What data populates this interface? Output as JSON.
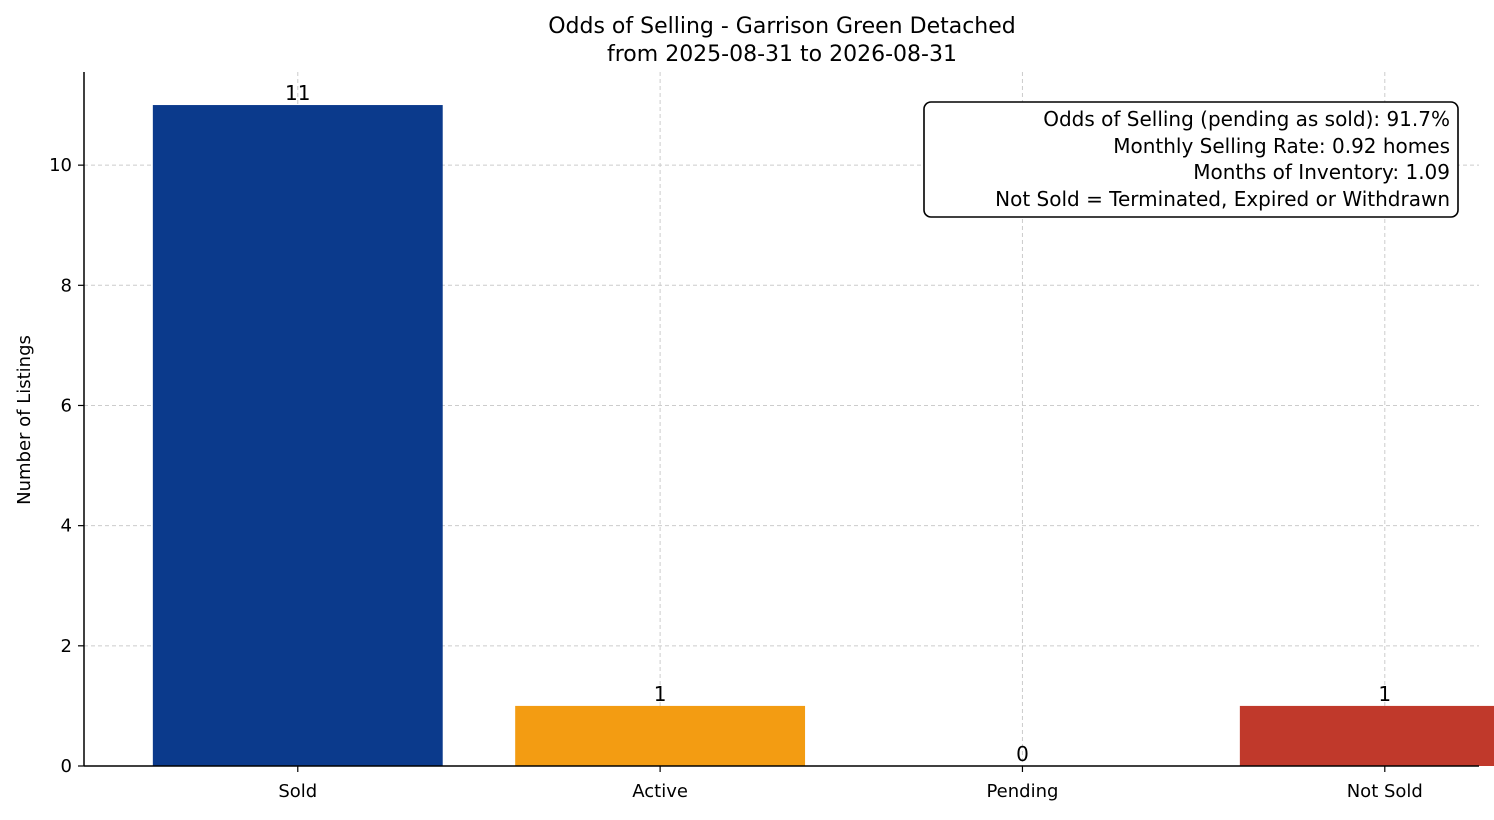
{
  "chart_data": {
    "type": "bar",
    "title": "Odds of Selling - Garrison Green Detached",
    "subtitle": "from 2025-08-31 to 2026-08-31",
    "xlabel": "",
    "ylabel": "Number of Listings",
    "categories": [
      "Sold",
      "Active",
      "Pending",
      "Not Sold"
    ],
    "values": [
      11,
      1,
      0,
      1
    ],
    "value_labels": [
      "11",
      "1",
      "0",
      "1"
    ],
    "colors": [
      "#0b3a8c",
      "#f39c12",
      "#f39c12",
      "#c0392b"
    ],
    "ylim": [
      0,
      11.55
    ],
    "yticks": [
      0,
      2,
      4,
      6,
      8,
      10
    ],
    "ytick_labels": [
      "0",
      "2",
      "4",
      "6",
      "8",
      "10"
    ],
    "grid": true,
    "info_box": {
      "placement": "top-right",
      "lines": [
        "Odds of Selling (pending as sold): 91.7%",
        "Monthly Selling Rate: 0.92 homes",
        "Months of Inventory: 1.09",
        "Not Sold = Terminated, Expired or Withdrawn"
      ]
    }
  }
}
